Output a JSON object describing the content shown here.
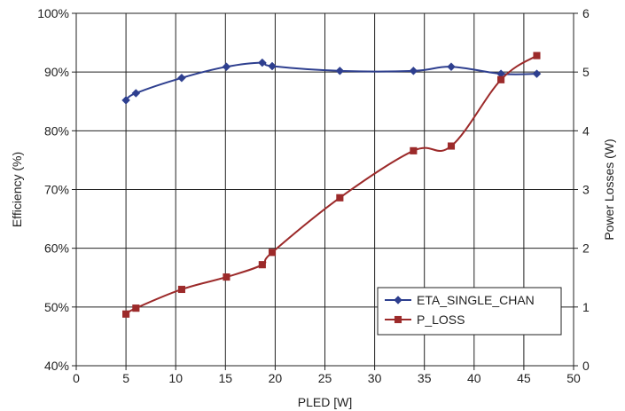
{
  "chart_data": {
    "type": "line",
    "xlabel": "PLED [W]",
    "ylabel": "Efficiency (%)",
    "y2label": "Power Losses (W)",
    "xlim": [
      0,
      50
    ],
    "ylim": [
      40,
      100
    ],
    "y2lim": [
      0,
      6
    ],
    "x_ticks": [
      "0",
      "5",
      "10",
      "15",
      "20",
      "25",
      "30",
      "35",
      "40",
      "45",
      "50"
    ],
    "y_ticks": [
      "40%",
      "50%",
      "60%",
      "70%",
      "80%",
      "90%",
      "100%"
    ],
    "y2_ticks": [
      "0",
      "1",
      "2",
      "3",
      "4",
      "5",
      "6"
    ],
    "grid": true,
    "legend_position": "bottom-right",
    "series": [
      {
        "name": "ETA_SINGLE_CHAN",
        "axis": "left",
        "color": "#2e3f8f",
        "marker": "diamond",
        "x": [
          5.0,
          6.0,
          10.6,
          15.1,
          18.7,
          19.7,
          26.5,
          33.9,
          37.7,
          42.7,
          46.3
        ],
        "y": [
          85.2,
          86.4,
          89.0,
          90.9,
          91.6,
          91.0,
          90.2,
          90.2,
          90.9,
          89.7,
          89.7
        ]
      },
      {
        "name": "P_LOSS",
        "axis": "right",
        "color": "#9c2a2a",
        "marker": "square",
        "x": [
          5.0,
          6.0,
          10.6,
          15.1,
          18.7,
          19.7,
          26.5,
          33.9,
          37.7,
          42.7,
          46.3
        ],
        "y": [
          0.88,
          0.98,
          1.3,
          1.51,
          1.72,
          1.93,
          2.86,
          3.66,
          3.74,
          4.87,
          5.28
        ]
      }
    ]
  }
}
